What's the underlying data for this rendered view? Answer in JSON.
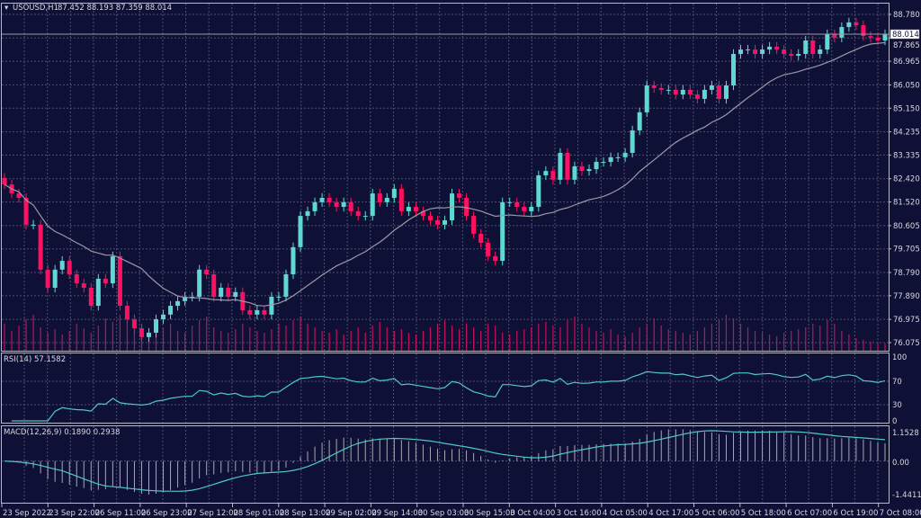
{
  "header": {
    "symbol": "USOUSD,H1",
    "ohlc": "87.452 88.193 87.359 88.014"
  },
  "colors": {
    "background": "#0f1035",
    "bull": "#5fd8d2",
    "bear": "#ff1060",
    "volume": "#c0105a",
    "moving_average": "#9a9aa6",
    "rsi_line": "#4fc8c8",
    "macd_signal": "#4fc8c8",
    "macd_histogram": "#a8a8b4",
    "grid": "#4c4f72"
  },
  "chart_data": [
    {
      "type": "candlestick",
      "title": "USOUSD,H1",
      "current_price": "88.014",
      "price_axis_ticks": [
        "88.780",
        "87.865",
        "86.965",
        "86.050",
        "85.150",
        "84.235",
        "83.335",
        "82.420",
        "81.520",
        "80.605",
        "79.705",
        "78.790",
        "77.890",
        "76.975",
        "76.075"
      ],
      "ylim": [
        76.075,
        88.78
      ],
      "time_axis_ticks": [
        "23 Sep 2022",
        "23 Sep 22:00",
        "26 Sep 11:00",
        "26 Sep 23:00",
        "27 Sep 12:00",
        "28 Sep 01:00",
        "28 Sep 13:00",
        "29 Sep 02:00",
        "29 Sep 14:00",
        "30 Sep 03:00",
        "30 Sep 15:00",
        "3 Oct 04:00",
        "3 Oct 16:00",
        "4 Oct 05:00",
        "4 Oct 17:00",
        "5 Oct 06:00",
        "5 Oct 18:00",
        "6 Oct 07:00",
        "6 Oct 19:00",
        "7 Oct 08:00"
      ],
      "grid": true,
      "moving_average_period": 20,
      "closes": [
        82.2,
        81.85,
        81.68,
        80.64,
        80.64,
        78.9,
        78.2,
        78.9,
        79.24,
        78.72,
        78.37,
        78.2,
        77.5,
        78.55,
        78.37,
        79.42,
        77.5,
        76.98,
        76.63,
        76.29,
        76.46,
        76.98,
        77.16,
        77.5,
        77.68,
        77.85,
        77.85,
        78.9,
        78.72,
        77.85,
        78.2,
        77.85,
        78.03,
        77.33,
        77.16,
        77.33,
        77.16,
        77.85,
        77.85,
        78.72,
        79.77,
        80.98,
        81.16,
        81.51,
        81.68,
        81.51,
        81.33,
        81.51,
        81.16,
        80.98,
        80.98,
        81.85,
        81.51,
        81.68,
        82.03,
        81.16,
        81.33,
        81.16,
        80.98,
        80.81,
        80.64,
        80.81,
        81.85,
        81.68,
        80.98,
        80.29,
        79.94,
        79.42,
        79.24,
        81.51,
        81.51,
        81.33,
        81.16,
        81.33,
        82.55,
        82.72,
        82.38,
        83.42,
        82.38,
        82.9,
        82.72,
        82.79,
        83.07,
        83.07,
        83.25,
        83.25,
        83.42,
        84.29,
        84.99,
        86.03,
        85.93,
        85.86,
        85.86,
        85.68,
        85.86,
        85.68,
        85.51,
        85.86,
        86.03,
        85.51,
        86.03,
        87.25,
        87.42,
        87.42,
        87.25,
        87.42,
        87.53,
        87.42,
        87.25,
        87.18,
        87.25,
        87.77,
        87.25,
        87.42,
        88.01,
        87.88,
        88.29,
        88.47,
        88.36,
        87.94,
        87.88,
        87.77,
        88.014
      ],
      "volumes": [
        30,
        22,
        28,
        35,
        40,
        26,
        20,
        24,
        18,
        22,
        30,
        25,
        20,
        28,
        36,
        32,
        40,
        30,
        22,
        18,
        20,
        24,
        26,
        30,
        22,
        20,
        28,
        34,
        38,
        26,
        22,
        20,
        24,
        30,
        26,
        22,
        20,
        24,
        30,
        28,
        34,
        38,
        30,
        26,
        22,
        20,
        24,
        18,
        22,
        26,
        20,
        28,
        32,
        26,
        22,
        24,
        20,
        18,
        22,
        26,
        30,
        34,
        28,
        24,
        30,
        26,
        22,
        30,
        28,
        20,
        18,
        22,
        24,
        26,
        30,
        32,
        28,
        26,
        34,
        38,
        30,
        26,
        22,
        20,
        24,
        18,
        16,
        20,
        26,
        30,
        36,
        28,
        24,
        22,
        20,
        18,
        22,
        26,
        30,
        34,
        40,
        36,
        30,
        26,
        22,
        20,
        18,
        16,
        20,
        22,
        24,
        26,
        30,
        28,
        34,
        30,
        22,
        18,
        14,
        12,
        10,
        8,
        8
      ]
    },
    {
      "type": "line",
      "title": "RSI(14) 57.1582",
      "ylim": [
        0,
        100
      ],
      "ticks": [
        "100",
        "70",
        "30",
        "0"
      ]
    },
    {
      "type": "bar",
      "title": "MACD(12,26,9) 0.1890 0.2938",
      "ylim": [
        -1.4411,
        1.1528
      ],
      "ticks": [
        "1.1528",
        "0.00",
        "-1.4411"
      ]
    }
  ]
}
